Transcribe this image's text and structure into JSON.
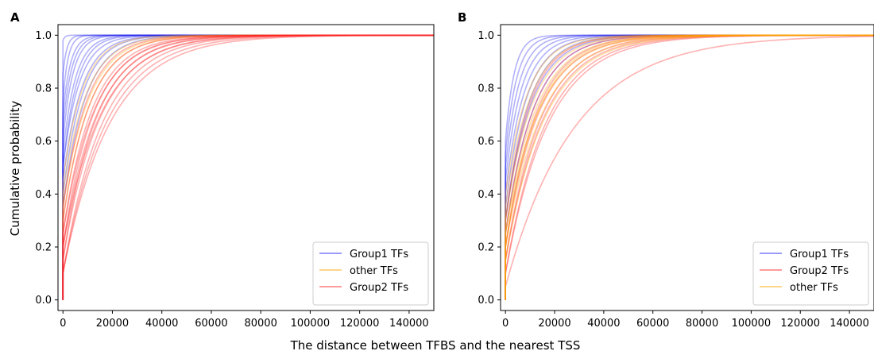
{
  "figure": {
    "shared_xlabel": "The distance between TFBS and the nearest TSS",
    "shared_ylabel": "Cumulative probability"
  },
  "chart_data": [
    {
      "panel": "A",
      "type": "line",
      "title": "",
      "xlabel": "",
      "ylabel": "Cumulative probability",
      "xlim": [
        -2000,
        150000
      ],
      "ylim": [
        -0.04,
        1.04
      ],
      "xticks": [
        0,
        20000,
        40000,
        60000,
        80000,
        100000,
        120000,
        140000
      ],
      "yticks": [
        0.0,
        0.2,
        0.4,
        0.6,
        0.8,
        1.0
      ],
      "legend": {
        "position": "lower-right",
        "entries": [
          "Group1 TFs",
          "other TFs",
          "Group2 TFs"
        ]
      },
      "grid": false,
      "groups": [
        {
          "name": "Group1 TFs",
          "color": "#2222ee",
          "curves": [
            {
              "c": 0.98,
              "k": 800
            },
            {
              "c": 0.85,
              "k": 1500
            },
            {
              "c": 0.75,
              "k": 2000
            },
            {
              "c": 0.7,
              "k": 3000
            },
            {
              "c": 0.65,
              "k": 3500
            },
            {
              "c": 0.6,
              "k": 4000
            },
            {
              "c": 0.55,
              "k": 5000
            },
            {
              "c": 0.5,
              "k": 5500
            },
            {
              "c": 0.5,
              "k": 6500
            },
            {
              "c": 0.45,
              "k": 7500
            },
            {
              "c": 0.4,
              "k": 8000
            },
            {
              "c": 0.35,
              "k": 9000
            }
          ]
        },
        {
          "name": "other TFs",
          "color": "#ffa500",
          "curves": [
            {
              "c": 0.45,
              "k": 8000
            },
            {
              "c": 0.4,
              "k": 9500
            },
            {
              "c": 0.35,
              "k": 10500
            },
            {
              "c": 0.3,
              "k": 11000
            }
          ]
        },
        {
          "name": "Group2 TFs",
          "color": "#ff2222",
          "curves": [
            {
              "c": 0.35,
              "k": 10000
            },
            {
              "c": 0.3,
              "k": 11000
            },
            {
              "c": 0.25,
              "k": 12000
            },
            {
              "c": 0.2,
              "k": 12500
            },
            {
              "c": 0.25,
              "k": 13000
            },
            {
              "c": 0.2,
              "k": 14000
            },
            {
              "c": 0.15,
              "k": 15000
            },
            {
              "c": 0.1,
              "k": 16000
            },
            {
              "c": 0.1,
              "k": 17500
            },
            {
              "c": 0.15,
              "k": 13500
            },
            {
              "c": 0.2,
              "k": 15500
            },
            {
              "c": 0.1,
              "k": 19000
            }
          ]
        }
      ]
    },
    {
      "panel": "B",
      "type": "line",
      "title": "",
      "xlabel": "",
      "ylabel": "",
      "xlim": [
        -2000,
        150000
      ],
      "ylim": [
        -0.04,
        1.04
      ],
      "xticks": [
        0,
        20000,
        40000,
        60000,
        80000,
        100000,
        120000,
        140000
      ],
      "yticks": [
        0.0,
        0.2,
        0.4,
        0.6,
        0.8,
        1.0
      ],
      "legend": {
        "position": "lower-right",
        "entries": [
          "Group1 TFs",
          "Group2 TFs",
          "other TFs"
        ]
      },
      "grid": false,
      "groups": [
        {
          "name": "Group1 TFs",
          "color": "#2222ee",
          "curves": [
            {
              "c": 0.6,
              "k": 3500
            },
            {
              "c": 0.55,
              "k": 4500
            },
            {
              "c": 0.5,
              "k": 5500
            },
            {
              "c": 0.45,
              "k": 6500
            },
            {
              "c": 0.4,
              "k": 7500
            },
            {
              "c": 0.35,
              "k": 8500
            },
            {
              "c": 0.3,
              "k": 9500
            },
            {
              "c": 0.3,
              "k": 10500
            },
            {
              "c": 0.25,
              "k": 11500
            }
          ]
        },
        {
          "name": "Group2 TFs",
          "color": "#ff2222",
          "curves": [
            {
              "c": 0.3,
              "k": 10000
            },
            {
              "c": 0.25,
              "k": 11500
            },
            {
              "c": 0.2,
              "k": 12500
            },
            {
              "c": 0.2,
              "k": 13500
            },
            {
              "c": 0.15,
              "k": 14500
            },
            {
              "c": 0.15,
              "k": 15500
            },
            {
              "c": 0.1,
              "k": 16500
            },
            {
              "c": 0.1,
              "k": 17500
            },
            {
              "c": 0.05,
              "k": 28000
            }
          ]
        },
        {
          "name": "other TFs",
          "color": "#ffa500",
          "curves": [
            {
              "c": 0.4,
              "k": 9000
            },
            {
              "c": 0.35,
              "k": 10000
            },
            {
              "c": 0.3,
              "k": 11000
            },
            {
              "c": 0.25,
              "k": 12500
            },
            {
              "c": 0.2,
              "k": 13000
            },
            {
              "c": 0.25,
              "k": 14000
            },
            {
              "c": 0.2,
              "k": 15000
            },
            {
              "c": 0.15,
              "k": 16000
            }
          ]
        }
      ]
    }
  ]
}
